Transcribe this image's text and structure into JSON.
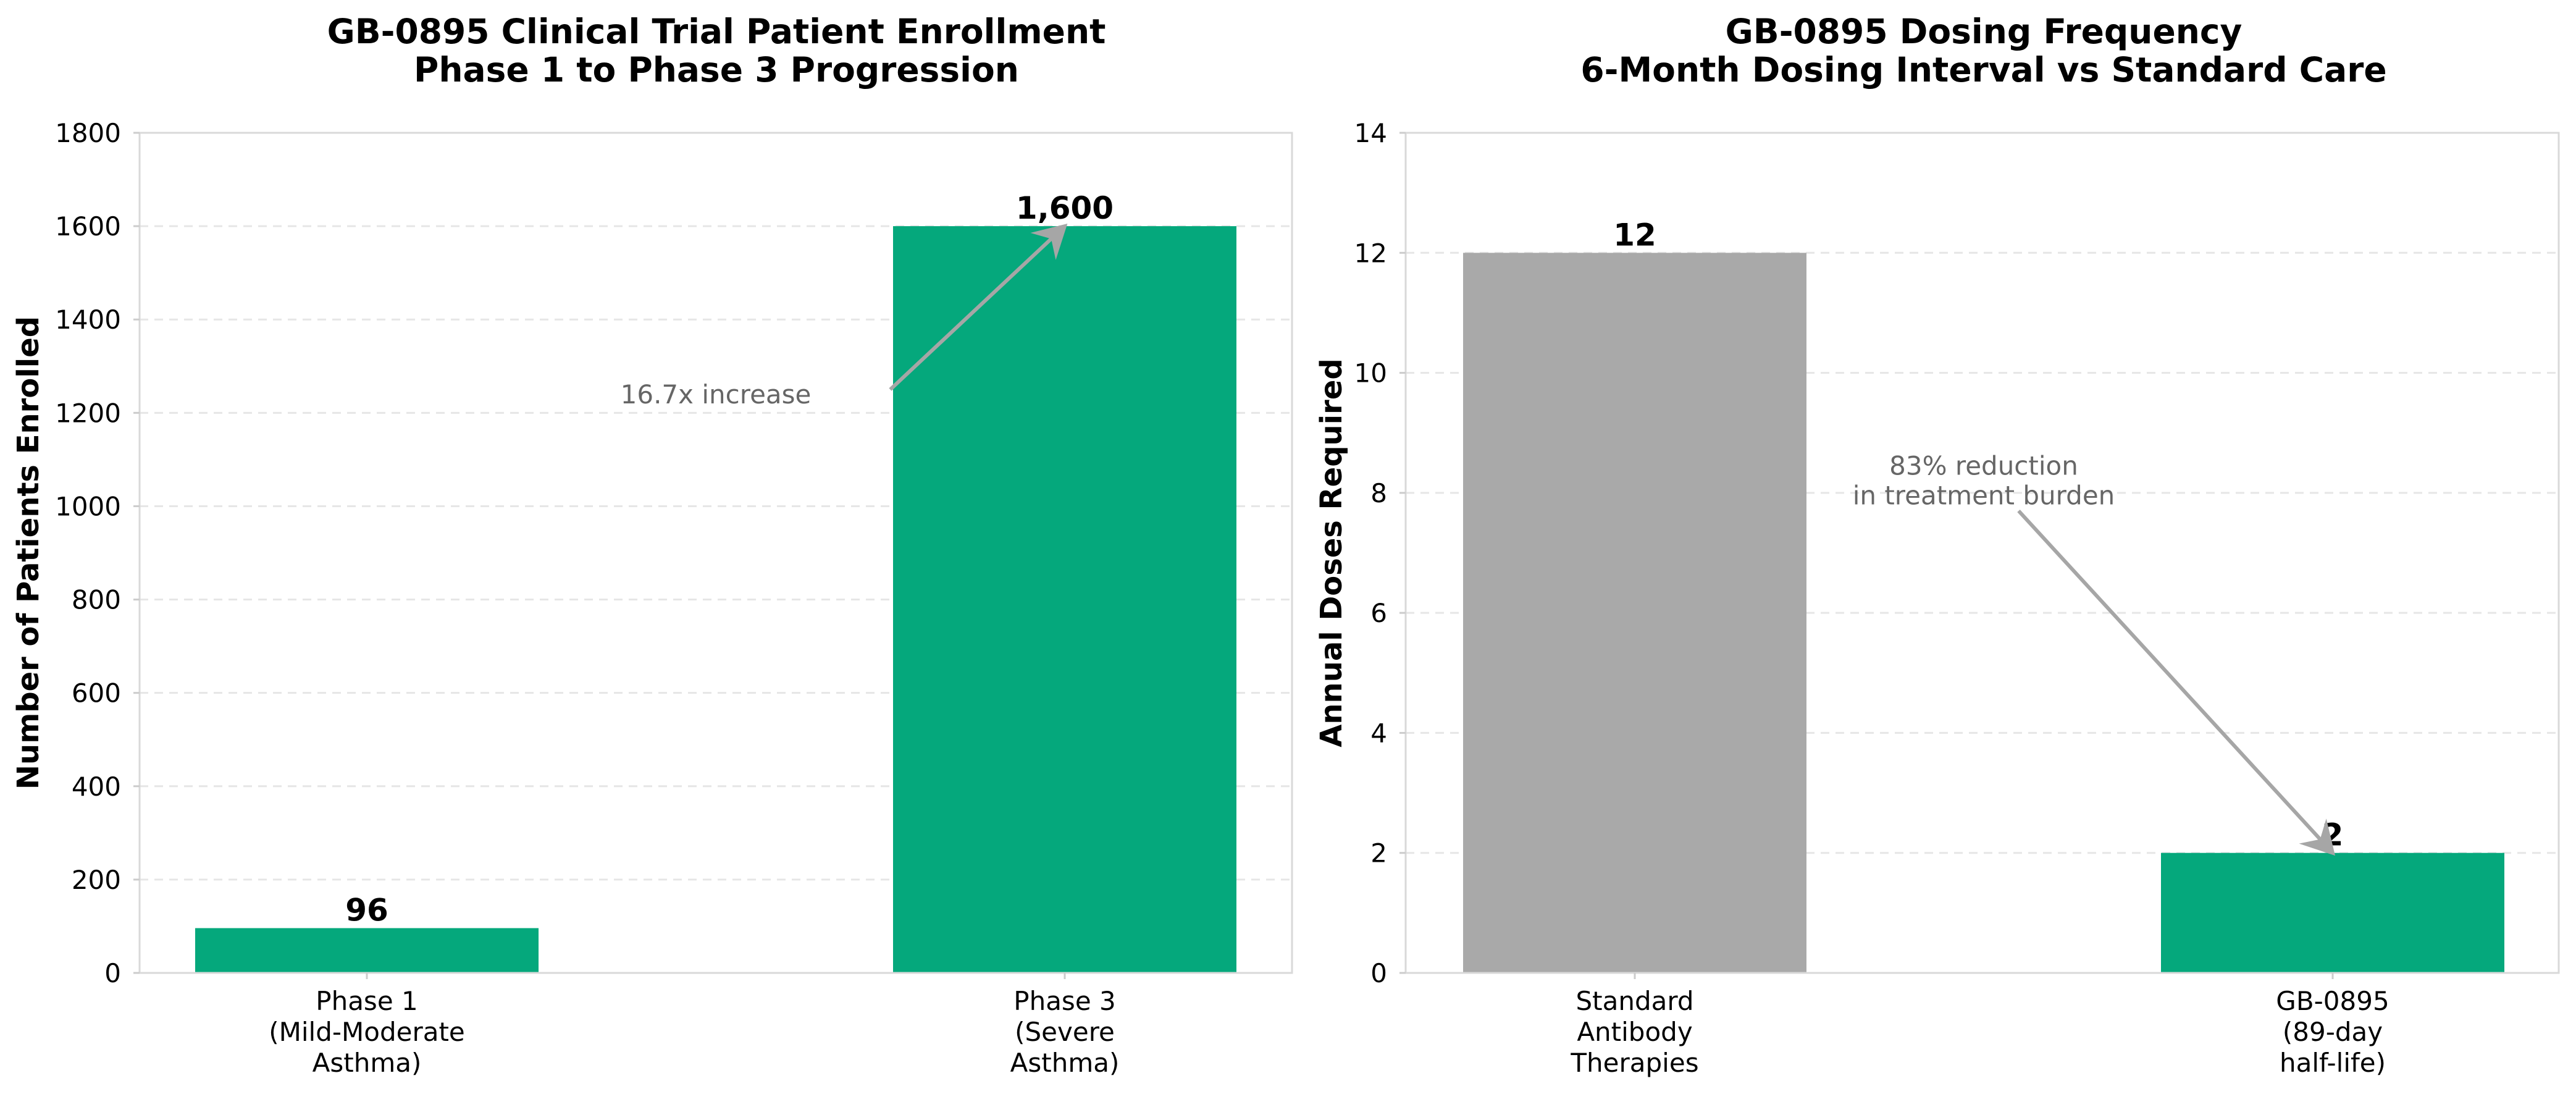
{
  "chart_data": [
    {
      "type": "bar",
      "title": "GB-0895 Clinical Trial Patient Enrollment",
      "subtitle": "Phase 1 to Phase 3 Progression",
      "xlabel": "",
      "ylabel": "Number of Patients Enrolled",
      "categories": [
        [
          "Phase 1",
          "(Mild-Moderate",
          "Asthma)"
        ],
        [
          "Phase 3",
          "(Severe",
          "Asthma)"
        ]
      ],
      "values": [
        96,
        1600
      ],
      "value_labels": [
        "96",
        "1,600"
      ],
      "colors": [
        "#05a87c",
        "#05a87c"
      ],
      "ylim": [
        0,
        1800
      ],
      "yticks": [
        0,
        200,
        400,
        600,
        800,
        1000,
        1200,
        1400,
        1600,
        1800
      ],
      "grid": true,
      "annotation": {
        "lines": [
          "16.7x increase"
        ],
        "text_anchor": {
          "x": 0.5,
          "y": 1220
        },
        "arrow_from": {
          "x": 0.75,
          "y": 1250
        },
        "arrow_to": {
          "x": 1,
          "y": 1600
        }
      }
    },
    {
      "type": "bar",
      "title": "GB-0895 Dosing Frequency",
      "subtitle": "6-Month Dosing Interval vs Standard Care",
      "xlabel": "",
      "ylabel": "Annual Doses Required",
      "categories": [
        [
          "Standard",
          "Antibody",
          "Therapies"
        ],
        [
          "GB-0895",
          "(89-day",
          "half-life)"
        ]
      ],
      "values": [
        12,
        2
      ],
      "value_labels": [
        "12",
        "2"
      ],
      "colors": [
        "#a9a9a9",
        "#05a87c"
      ],
      "ylim": [
        0,
        14
      ],
      "yticks": [
        0,
        2,
        4,
        6,
        8,
        10,
        12,
        14
      ],
      "grid": true,
      "annotation": {
        "lines": [
          "83% reduction",
          "in treatment burden"
        ],
        "text_anchor": {
          "x": 0.5,
          "y": 8.3
        },
        "arrow_from": {
          "x": 0.55,
          "y": 7.7
        },
        "arrow_to": {
          "x": 1,
          "y": 2
        }
      }
    }
  ]
}
